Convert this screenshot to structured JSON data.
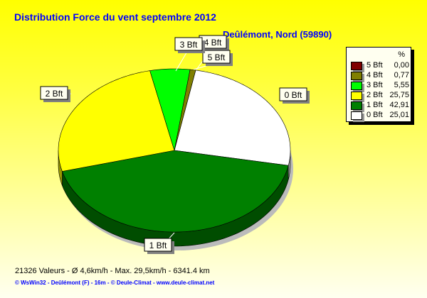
{
  "title": "Distribution Force du vent  septembre 2012",
  "subtitle": "Deûlémont, Nord (59890)",
  "chart_data": {
    "type": "pie",
    "title": "Distribution Force du vent  septembre 2012",
    "legend_header": "%",
    "legend_position": "right",
    "slices": [
      {
        "label": "5 Bft",
        "value": 0.0,
        "value_text": "0,00",
        "color": "#800000"
      },
      {
        "label": "4 Bft",
        "value": 0.77,
        "value_text": "0,77",
        "color": "#808000"
      },
      {
        "label": "3 Bft",
        "value": 5.55,
        "value_text": "5,55",
        "color": "#00ff00"
      },
      {
        "label": "2 Bft",
        "value": 25.75,
        "value_text": "25,75",
        "color": "#ffff00"
      },
      {
        "label": "1 Bft",
        "value": 42.91,
        "value_text": "42,91",
        "color": "#008000"
      },
      {
        "label": "0 Bft",
        "value": 25.01,
        "value_text": "25,01",
        "color": "#ffffff"
      }
    ]
  },
  "stats": "21326 Valeurs   -   Ø 4,6km/h  -  Max. 29,5km/h   -   6341.4 km",
  "footer": "© WsWin32  -  Deûlémont (F) - 16m  -  © Deule-Climat - www.deule-climat.net"
}
